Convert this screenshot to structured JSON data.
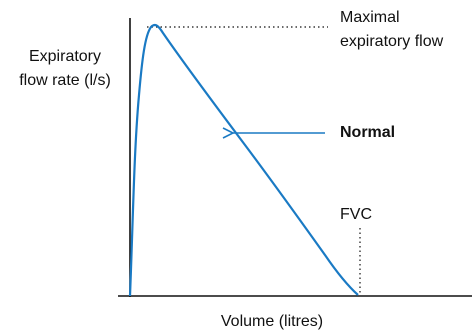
{
  "y_axis_label": [
    "Expiratory",
    "flow rate (l/s)"
  ],
  "x_axis_label": "Volume (litres)",
  "annotations": {
    "max_flow": [
      "Maximal",
      "expiratory flow"
    ],
    "normal": "Normal",
    "fvc": "FVC"
  }
}
